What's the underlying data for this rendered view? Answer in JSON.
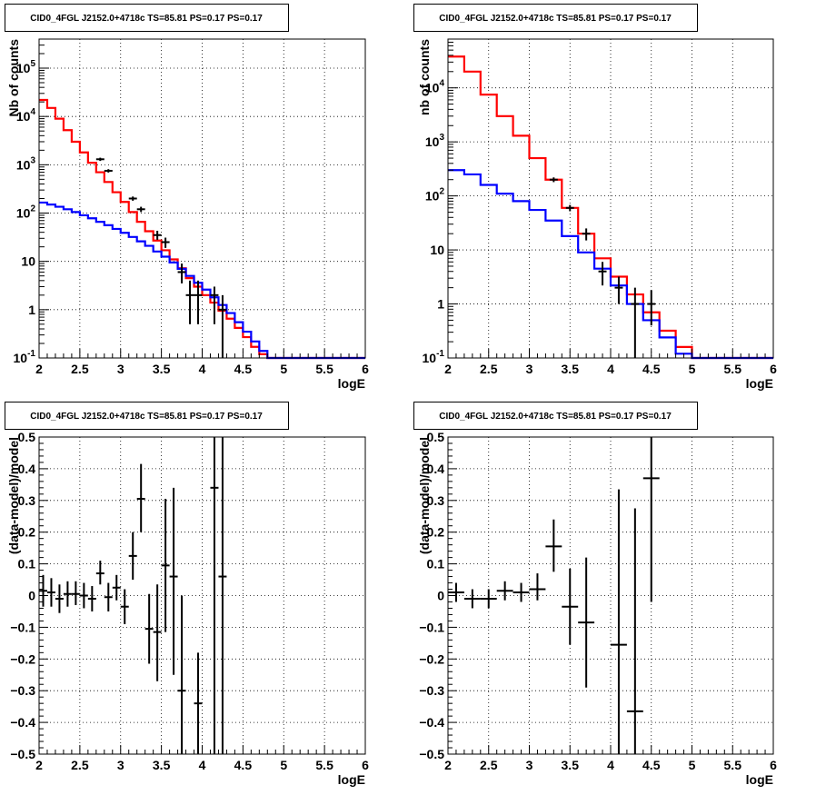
{
  "chart_data": [
    {
      "type": "histogram",
      "title": "CID0_4FGL J2152.0+4718c TS=85.81 PS=0.17 PS=0.17",
      "xlabel": "logE",
      "ylabel": "Nb of counts",
      "xlim": [
        2,
        6
      ],
      "ylim": [
        0.1,
        400000
      ],
      "yscale": "log",
      "grid": true,
      "x_ticks": [
        "2",
        "2.5",
        "3",
        "3.5",
        "4",
        "4.5",
        "5",
        "5.5",
        "6"
      ],
      "y_ticks": [
        {
          "v": 0.1,
          "base": "10",
          "exp": "-1"
        },
        {
          "v": 1,
          "text": "1"
        },
        {
          "v": 10,
          "text": "10"
        },
        {
          "v": 100,
          "base": "10",
          "exp": "2"
        },
        {
          "v": 1000,
          "base": "10",
          "exp": "3"
        },
        {
          "v": 10000,
          "base": "10",
          "exp": "4"
        },
        {
          "v": 100000,
          "base": "10",
          "exp": "5"
        }
      ],
      "bin_edges": [
        2.0,
        2.1,
        2.2,
        2.3,
        2.4,
        2.5,
        2.6,
        2.7,
        2.8,
        2.9,
        3.0,
        3.1,
        3.2,
        3.3,
        3.4,
        3.5,
        3.6,
        3.7,
        3.8,
        3.9,
        4.0,
        4.1,
        4.2,
        4.3,
        4.4,
        4.5,
        4.6,
        4.7,
        4.8,
        4.9,
        5.0,
        5.1,
        5.2,
        5.3,
        5.4,
        5.5,
        5.6,
        5.7,
        5.8,
        5.9,
        6.0
      ],
      "series": [
        {
          "color": "#ff0000",
          "kind": "step",
          "values": [
            22000,
            15000,
            9000,
            5200,
            3000,
            1800,
            1100,
            700,
            440,
            270,
            170,
            105,
            66,
            42,
            27,
            17,
            11,
            7.2,
            4.5,
            3.0,
            2.0,
            1.4,
            0.95,
            0.65,
            0.42,
            0.27,
            0.17,
            0.12,
            0.1,
            0.1,
            0.1,
            0.1,
            0.1,
            0.1,
            0.1,
            0.1,
            0.1,
            0.1,
            0.1,
            0.1
          ]
        },
        {
          "color": "#0000ff",
          "kind": "step",
          "values": [
            165,
            150,
            135,
            120,
            105,
            90,
            78,
            66,
            56,
            47,
            39,
            32,
            26,
            21,
            16,
            12.5,
            9.5,
            7,
            5,
            3.6,
            2.6,
            1.8,
            1.25,
            0.85,
            0.55,
            0.35,
            0.22,
            0.14,
            0.1,
            0.1,
            0.1,
            0.1,
            0.1,
            0.1,
            0.1,
            0.1,
            0.1,
            0.1,
            0.1,
            0.1
          ]
        },
        {
          "color": "#000000",
          "kind": "points",
          "x": [
            2.75,
            2.85,
            3.15,
            3.25,
            3.45,
            3.55,
            3.75,
            3.85,
            3.95,
            4.15,
            4.25
          ],
          "y": [
            1300,
            750,
            200,
            120,
            35,
            25,
            6,
            2,
            2,
            2,
            1
          ],
          "ylo": [
            1200,
            690,
            180,
            105,
            28,
            19,
            3.5,
            0.5,
            0.5,
            0.5,
            0.1
          ],
          "yhi": [
            1400,
            810,
            220,
            135,
            43,
            31,
            9,
            4,
            4,
            3,
            2
          ]
        }
      ]
    },
    {
      "type": "histogram",
      "title": "CID0_4FGL J2152.0+4718c TS=85.81 PS=0.17 PS=0.17",
      "xlabel": "logE",
      "ylabel": "nb of counts",
      "xlim": [
        2,
        6
      ],
      "ylim": [
        0.1,
        80000
      ],
      "yscale": "log",
      "grid": true,
      "x_ticks": [
        "2",
        "2.5",
        "3",
        "3.5",
        "4",
        "4.5",
        "5",
        "5.5",
        "6"
      ],
      "y_ticks": [
        {
          "v": 0.1,
          "base": "10",
          "exp": "-1"
        },
        {
          "v": 1,
          "text": "1"
        },
        {
          "v": 10,
          "text": "10"
        },
        {
          "v": 100,
          "base": "10",
          "exp": "2"
        },
        {
          "v": 1000,
          "base": "10",
          "exp": "3"
        },
        {
          "v": 10000,
          "base": "10",
          "exp": "4"
        }
      ],
      "bin_edges": [
        2.0,
        2.2,
        2.4,
        2.6,
        2.8,
        3.0,
        3.2,
        3.4,
        3.6,
        3.8,
        4.0,
        4.2,
        4.4,
        4.6,
        4.8,
        5.0,
        5.2,
        5.4,
        5.6,
        5.8,
        6.0
      ],
      "series": [
        {
          "color": "#ff0000",
          "kind": "step",
          "values": [
            38000,
            20000,
            7500,
            3000,
            1300,
            500,
            200,
            60,
            20,
            7,
            3.2,
            1.5,
            0.7,
            0.32,
            0.16,
            0.1,
            0.1,
            0.1,
            0.1,
            0.1
          ]
        },
        {
          "color": "#0000ff",
          "kind": "step",
          "values": [
            300,
            250,
            160,
            110,
            80,
            55,
            35,
            18,
            9,
            4.5,
            2.2,
            1,
            0.5,
            0.24,
            0.12,
            0.1,
            0.1,
            0.1,
            0.1,
            0.1
          ]
        },
        {
          "color": "#000000",
          "kind": "points",
          "x": [
            3.3,
            3.5,
            3.7,
            3.9,
            4.1,
            4.3,
            4.5
          ],
          "y": [
            200,
            60,
            20,
            4,
            2,
            1,
            1
          ],
          "ylo": [
            180,
            52,
            15,
            2.2,
            1,
            0.1,
            0.4
          ],
          "yhi": [
            220,
            68,
            25,
            6,
            3.2,
            2,
            1.8
          ]
        }
      ]
    },
    {
      "type": "scatter",
      "title": "CID0_4FGL J2152.0+4718c TS=85.81 PS=0.17 PS=0.17",
      "xlabel": "logE",
      "ylabel": "(data-model)/model",
      "xlim": [
        2,
        6
      ],
      "ylim": [
        -0.5,
        0.5
      ],
      "yscale": "linear",
      "grid": true,
      "x_ticks": [
        "2",
        "2.5",
        "3",
        "3.5",
        "4",
        "4.5",
        "5",
        "5.5",
        "6"
      ],
      "y_ticks": [
        {
          "v": -0.5,
          "text": "−0.5"
        },
        {
          "v": -0.4,
          "text": "−0.4"
        },
        {
          "v": -0.3,
          "text": "−0.3"
        },
        {
          "v": -0.2,
          "text": "−0.2"
        },
        {
          "v": -0.1,
          "text": "−0.1"
        },
        {
          "v": 0,
          "text": "0"
        },
        {
          "v": 0.1,
          "text": "0.1"
        },
        {
          "v": 0.2,
          "text": "0.2"
        },
        {
          "v": 0.3,
          "text": "0.3"
        },
        {
          "v": 0.4,
          "text": "0.4"
        },
        {
          "v": 0.5,
          "text": "0.5"
        }
      ],
      "series": [
        {
          "color": "#000000",
          "kind": "errors",
          "halfwidth": 0.05,
          "x": [
            2.05,
            2.15,
            2.25,
            2.35,
            2.45,
            2.55,
            2.65,
            2.75,
            2.85,
            2.95,
            3.05,
            3.15,
            3.25,
            3.35,
            3.45,
            3.55,
            3.65,
            3.75,
            3.95,
            4.15,
            4.25
          ],
          "y": [
            0.015,
            0.01,
            -0.01,
            0.005,
            0.005,
            0.0,
            -0.01,
            0.07,
            -0.005,
            0.025,
            -0.035,
            0.125,
            0.305,
            -0.105,
            -0.115,
            0.095,
            0.06,
            -0.3,
            -0.34,
            0.34,
            0.06
          ],
          "ylo": [
            -0.035,
            -0.035,
            -0.055,
            -0.035,
            -0.03,
            -0.04,
            -0.05,
            0.035,
            -0.05,
            -0.015,
            -0.09,
            0.05,
            0.2,
            -0.215,
            -0.27,
            -0.115,
            -0.25,
            -0.5,
            -0.5,
            -0.5,
            -0.5
          ],
          "yhi": [
            0.065,
            0.055,
            0.035,
            0.045,
            0.045,
            0.04,
            0.03,
            0.11,
            0.04,
            0.065,
            0.02,
            0.2,
            0.415,
            0.005,
            0.035,
            0.305,
            0.34,
            0.0,
            -0.18,
            0.5,
            0.5
          ]
        }
      ]
    },
    {
      "type": "scatter",
      "title": "CID0_4FGL J2152.0+4718c TS=85.81 PS=0.17 PS=0.17",
      "xlabel": "logE",
      "ylabel": "(data-model)/model",
      "xlim": [
        2,
        6
      ],
      "ylim": [
        -0.5,
        0.5
      ],
      "yscale": "linear",
      "grid": true,
      "x_ticks": [
        "2",
        "2.5",
        "3",
        "3.5",
        "4",
        "4.5",
        "5",
        "5.5",
        "6"
      ],
      "y_ticks": [
        {
          "v": -0.5,
          "text": "−0.5"
        },
        {
          "v": -0.4,
          "text": "−0.4"
        },
        {
          "v": -0.3,
          "text": "−0.3"
        },
        {
          "v": -0.2,
          "text": "−0.2"
        },
        {
          "v": -0.1,
          "text": "−0.1"
        },
        {
          "v": 0,
          "text": "0"
        },
        {
          "v": 0.1,
          "text": "0.1"
        },
        {
          "v": 0.2,
          "text": "0.2"
        },
        {
          "v": 0.3,
          "text": "0.3"
        },
        {
          "v": 0.4,
          "text": "0.4"
        },
        {
          "v": 0.5,
          "text": "0.5"
        }
      ],
      "series": [
        {
          "color": "#000000",
          "kind": "errors",
          "halfwidth": 0.1,
          "x": [
            2.1,
            2.3,
            2.5,
            2.7,
            2.9,
            3.1,
            3.3,
            3.5,
            3.7,
            4.1,
            4.3,
            4.5
          ],
          "y": [
            0.01,
            -0.01,
            -0.01,
            0.015,
            0.01,
            0.02,
            0.155,
            -0.035,
            -0.085,
            -0.155,
            -0.365,
            0.37
          ],
          "ylo": [
            -0.02,
            -0.04,
            -0.04,
            -0.015,
            -0.02,
            -0.015,
            0.075,
            -0.155,
            -0.29,
            -0.5,
            -0.5,
            -0.02
          ],
          "yhi": [
            0.04,
            0.02,
            0.02,
            0.045,
            0.04,
            0.07,
            0.24,
            0.085,
            0.12,
            0.335,
            0.275,
            0.5
          ]
        }
      ]
    }
  ]
}
